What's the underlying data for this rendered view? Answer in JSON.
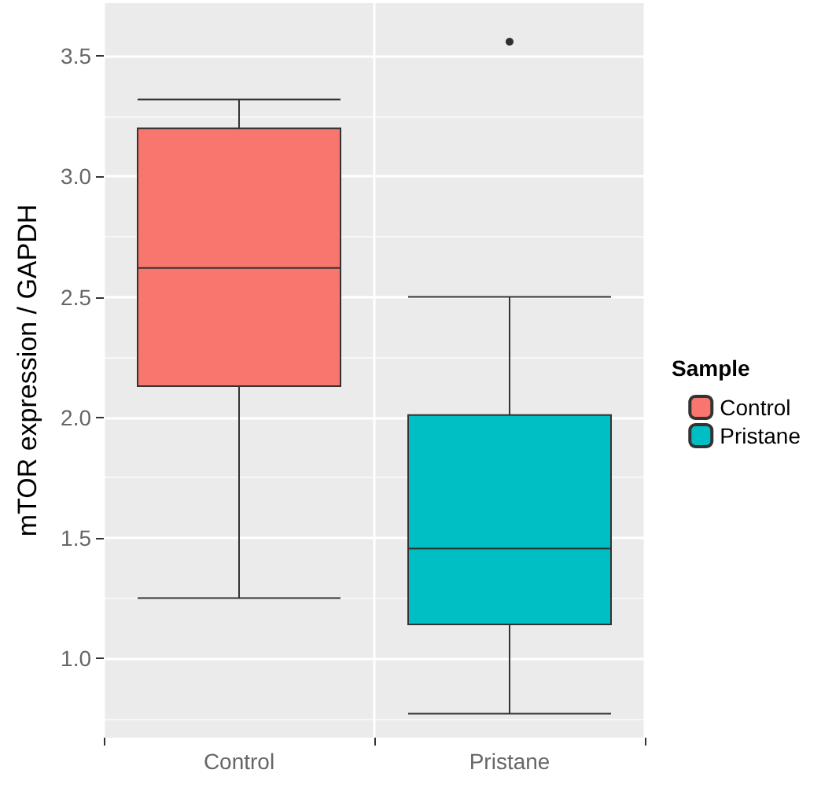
{
  "chart_data": {
    "type": "box",
    "ylabel": "mTOR expression / GAPDH",
    "legend_title": "Sample",
    "categories": [
      "Control",
      "Pristane"
    ],
    "series": [
      {
        "name": "Control",
        "color": "#f8766d",
        "boxes": [
          {
            "low": 1.25,
            "q1": 2.13,
            "median": 2.62,
            "q3": 3.2,
            "high": 3.32
          },
          null
        ]
      },
      {
        "name": "Pristane",
        "color": "#00bfc4",
        "boxes": [
          null,
          {
            "low": 0.77,
            "q1": 1.14,
            "median": 1.455,
            "q3": 2.01,
            "high": 2.5,
            "outliers": [
              3.56
            ]
          }
        ]
      }
    ],
    "ylim": [
      0.67,
      3.72
    ],
    "yticks": [
      {
        "value": 1,
        "label": "1.0"
      },
      1.5,
      {
        "value": 2,
        "label": "2.0"
      },
      2.5,
      {
        "value": 3,
        "label": "3.0"
      },
      3.5
    ],
    "grid": true,
    "legend": "right"
  }
}
